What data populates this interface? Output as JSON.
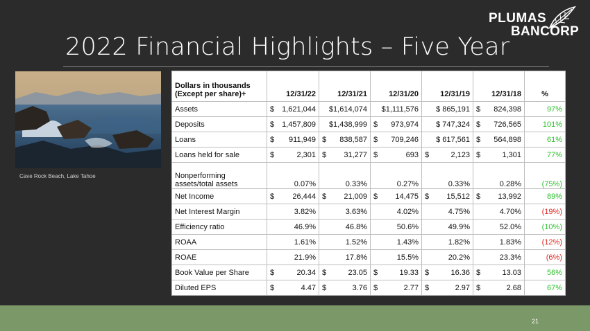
{
  "slide": {
    "title": "2022 Financial Highlights – Five Year",
    "logo_line1": "PLUMAS",
    "logo_line2": "BANCORP",
    "caption": "Cave Rock Beach, Lake Tahoe",
    "page_number": "21"
  },
  "colors": {
    "background": "#2b2b2b",
    "footer": "#7b9868",
    "positive": "#2bbf2b",
    "negative": "#e0261f"
  },
  "table": {
    "header": {
      "label_line1": "Dollars in thousands",
      "label_line2": "(Except per share)+",
      "col1": "12/31/22",
      "col2": "12/31/21",
      "col3": "12/31/20",
      "col4": "12/31/19",
      "col5": "12/31/18",
      "pct": "%"
    },
    "rows": [
      {
        "label": "Assets",
        "cells": [
          {
            "cur": "$",
            "val": "1,621,044"
          },
          {
            "cur": "",
            "val": "$1,614,074"
          },
          {
            "cur": "",
            "val": "$1,111,576"
          },
          {
            "cur": "",
            "val": "$ 865,191"
          },
          {
            "cur": "$",
            "val": "824,398"
          }
        ],
        "pct": "97%",
        "sign": "pos"
      },
      {
        "label": "Deposits",
        "cells": [
          {
            "cur": "$",
            "val": "1,457,809"
          },
          {
            "cur": "",
            "val": "$1,438,999"
          },
          {
            "cur": "$",
            "val": "973,974"
          },
          {
            "cur": "",
            "val": "$ 747,324"
          },
          {
            "cur": "$",
            "val": "726,565"
          }
        ],
        "pct": "101%",
        "sign": "pos"
      },
      {
        "label": "Loans",
        "cells": [
          {
            "cur": "$",
            "val": "911,949"
          },
          {
            "cur": "$",
            "val": "838,587"
          },
          {
            "cur": "$",
            "val": "709,246"
          },
          {
            "cur": "",
            "val": "$ 617,561"
          },
          {
            "cur": "$",
            "val": "564,898"
          }
        ],
        "pct": "61%",
        "sign": "pos"
      },
      {
        "label": "Loans held for sale",
        "cells": [
          {
            "cur": "$",
            "val": "2,301"
          },
          {
            "cur": "$",
            "val": "31,277"
          },
          {
            "cur": "$",
            "val": "693"
          },
          {
            "cur": "$",
            "val": "2,123"
          },
          {
            "cur": "$",
            "val": "1,301"
          }
        ],
        "pct": "77%",
        "sign": "pos"
      },
      {
        "label": "Nonperforming",
        "label2": "assets/total assets",
        "cells": [
          {
            "cur": "",
            "val": "0.07%"
          },
          {
            "cur": "",
            "val": "0.33%"
          },
          {
            "cur": "",
            "val": "0.27%"
          },
          {
            "cur": "",
            "val": "0.33%"
          },
          {
            "cur": "",
            "val": "0.28%"
          }
        ],
        "pct": "(75%)",
        "sign": "pos"
      },
      {
        "label": "Net Income",
        "cells": [
          {
            "cur": "$",
            "val": "26,444"
          },
          {
            "cur": "$",
            "val": "21,009"
          },
          {
            "cur": "$",
            "val": "14,475"
          },
          {
            "cur": "$",
            "val": "15,512"
          },
          {
            "cur": "$",
            "val": "13,992"
          }
        ],
        "pct": "89%",
        "sign": "pos"
      },
      {
        "label": "Net Interest Margin",
        "cells": [
          {
            "cur": "",
            "val": "3.82%"
          },
          {
            "cur": "",
            "val": "3.63%"
          },
          {
            "cur": "",
            "val": "4.02%"
          },
          {
            "cur": "",
            "val": "4.75%"
          },
          {
            "cur": "",
            "val": "4.70%"
          }
        ],
        "pct": "(19%)",
        "sign": "neg"
      },
      {
        "label": "Efficiency ratio",
        "cells": [
          {
            "cur": "",
            "val": "46.9%"
          },
          {
            "cur": "",
            "val": "46.8%"
          },
          {
            "cur": "",
            "val": "50.6%"
          },
          {
            "cur": "",
            "val": "49.9%"
          },
          {
            "cur": "",
            "val": "52.0%"
          }
        ],
        "pct": "(10%)",
        "sign": "pos"
      },
      {
        "label": "ROAA",
        "cells": [
          {
            "cur": "",
            "val": "1.61%"
          },
          {
            "cur": "",
            "val": "1.52%"
          },
          {
            "cur": "",
            "val": "1.43%"
          },
          {
            "cur": "",
            "val": "1.82%"
          },
          {
            "cur": "",
            "val": "1.83%"
          }
        ],
        "pct": "(12%)",
        "sign": "neg"
      },
      {
        "label": "ROAE",
        "cells": [
          {
            "cur": "",
            "val": "21.9%"
          },
          {
            "cur": "",
            "val": "17.8%"
          },
          {
            "cur": "",
            "val": "15.5%"
          },
          {
            "cur": "",
            "val": "20.2%"
          },
          {
            "cur": "",
            "val": "23.3%"
          }
        ],
        "pct": "(6%)",
        "sign": "neg"
      },
      {
        "label": "Book Value per Share",
        "cells": [
          {
            "cur": "$",
            "val": "20.34"
          },
          {
            "cur": "$",
            "val": "23.05"
          },
          {
            "cur": "$",
            "val": "19.33"
          },
          {
            "cur": "$",
            "val": "16.36"
          },
          {
            "cur": "$",
            "val": "13.03"
          }
        ],
        "pct": "56%",
        "sign": "pos"
      },
      {
        "label": "Diluted EPS",
        "cells": [
          {
            "cur": "$",
            "val": "4.47"
          },
          {
            "cur": "$",
            "val": "3.76"
          },
          {
            "cur": "$",
            "val": "2.77"
          },
          {
            "cur": "$",
            "val": "2.97"
          },
          {
            "cur": "$",
            "val": "2.68"
          }
        ],
        "pct": "67%",
        "sign": "pos"
      }
    ]
  }
}
